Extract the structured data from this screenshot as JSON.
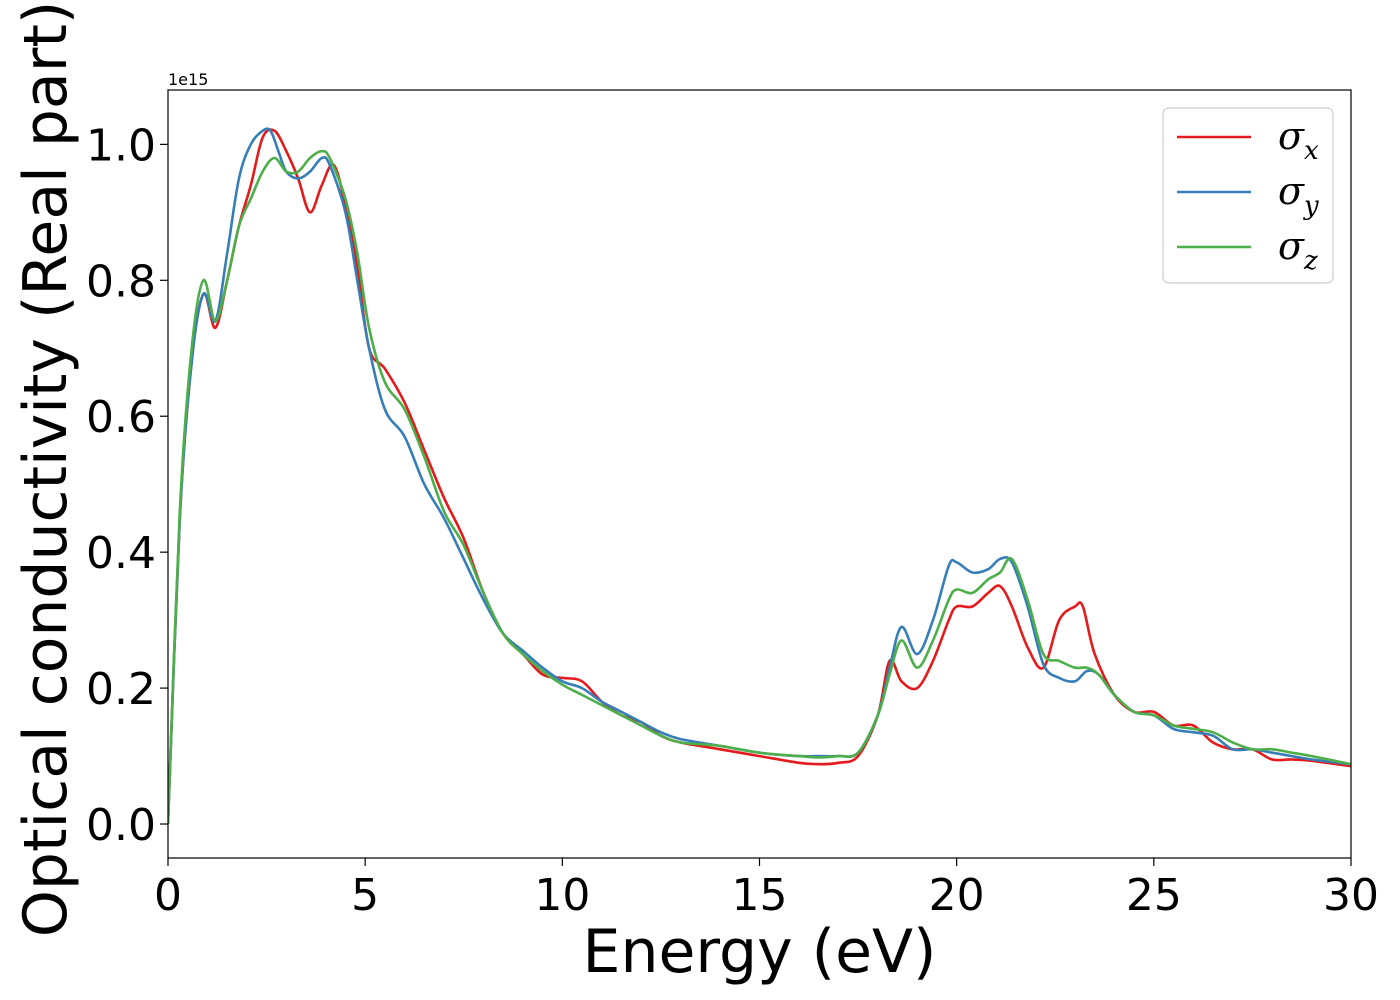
{
  "chart_data": {
    "type": "line",
    "title": "",
    "xlabel": "Energy (eV)",
    "ylabel": "Optical conductivity (Real part)",
    "y_offset_label": "1e15",
    "xlim": [
      0,
      30
    ],
    "ylim": [
      -0.05,
      1.08
    ],
    "xticks": [
      0,
      5,
      10,
      15,
      20,
      25,
      30
    ],
    "xtick_labels": [
      "0",
      "5",
      "10",
      "15",
      "20",
      "25",
      "30"
    ],
    "yticks": [
      0.0,
      0.2,
      0.4,
      0.6,
      0.8,
      1.0
    ],
    "ytick_labels": [
      "0.0",
      "0.2",
      "0.4",
      "0.6",
      "0.8",
      "1.0"
    ],
    "grid": false,
    "legend_position": "top-right",
    "series": [
      {
        "symbol": "σ",
        "subscript": "x",
        "color": "#e41a1c",
        "x": [
          0,
          0.3,
          0.6,
          0.9,
          1.2,
          1.5,
          1.8,
          2.1,
          2.4,
          2.7,
          3.0,
          3.3,
          3.6,
          3.9,
          4.2,
          4.5,
          4.8,
          5.1,
          5.5,
          6.0,
          6.5,
          7.0,
          7.5,
          8.0,
          8.5,
          9.0,
          9.5,
          10.0,
          10.5,
          11.0,
          11.5,
          12.0,
          12.5,
          13.0,
          14.0,
          15.0,
          16.0,
          16.5,
          17.0,
          17.5,
          18.0,
          18.3,
          18.6,
          19.0,
          19.4,
          19.8,
          20.0,
          20.4,
          20.8,
          21.1,
          21.4,
          21.8,
          22.2,
          22.6,
          23.0,
          23.2,
          23.5,
          24.0,
          24.5,
          25.0,
          25.5,
          26.0,
          26.5,
          27.0,
          27.5,
          28.0,
          28.5,
          29.0,
          30.0
        ],
        "y": [
          0.0,
          0.45,
          0.68,
          0.78,
          0.73,
          0.8,
          0.88,
          0.94,
          1.01,
          1.02,
          0.99,
          0.95,
          0.9,
          0.94,
          0.97,
          0.91,
          0.82,
          0.7,
          0.67,
          0.62,
          0.55,
          0.48,
          0.42,
          0.34,
          0.28,
          0.25,
          0.22,
          0.215,
          0.21,
          0.18,
          0.16,
          0.15,
          0.13,
          0.12,
          0.11,
          0.1,
          0.09,
          0.088,
          0.09,
          0.1,
          0.16,
          0.24,
          0.21,
          0.2,
          0.24,
          0.3,
          0.32,
          0.32,
          0.34,
          0.35,
          0.32,
          0.26,
          0.23,
          0.3,
          0.32,
          0.32,
          0.25,
          0.19,
          0.165,
          0.165,
          0.145,
          0.145,
          0.12,
          0.11,
          0.11,
          0.095,
          0.095,
          0.093,
          0.085
        ]
      },
      {
        "symbol": "σ",
        "subscript": "y",
        "color": "#377eb8",
        "x": [
          0,
          0.3,
          0.6,
          0.9,
          1.2,
          1.5,
          1.8,
          2.1,
          2.4,
          2.6,
          2.8,
          3.0,
          3.3,
          3.6,
          3.9,
          4.1,
          4.5,
          4.8,
          5.1,
          5.5,
          6.0,
          6.5,
          7.0,
          7.5,
          8.0,
          8.5,
          9.0,
          9.5,
          10.0,
          10.5,
          11.0,
          11.5,
          12.0,
          12.5,
          13.0,
          14.0,
          15.0,
          16.0,
          16.5,
          17.0,
          17.5,
          18.0,
          18.3,
          18.6,
          19.0,
          19.4,
          19.8,
          20.0,
          20.4,
          20.8,
          21.1,
          21.4,
          21.8,
          22.2,
          22.6,
          23.0,
          23.3,
          23.6,
          24.0,
          24.5,
          25.0,
          25.5,
          26.0,
          26.5,
          27.0,
          27.5,
          28.0,
          28.5,
          29.0,
          30.0
        ],
        "y": [
          0.0,
          0.45,
          0.68,
          0.78,
          0.74,
          0.84,
          0.95,
          1.0,
          1.02,
          1.02,
          0.99,
          0.96,
          0.95,
          0.96,
          0.98,
          0.97,
          0.9,
          0.8,
          0.7,
          0.61,
          0.57,
          0.5,
          0.45,
          0.39,
          0.33,
          0.28,
          0.255,
          0.23,
          0.21,
          0.2,
          0.18,
          0.165,
          0.15,
          0.135,
          0.125,
          0.115,
          0.105,
          0.1,
          0.1,
          0.1,
          0.105,
          0.16,
          0.23,
          0.29,
          0.25,
          0.3,
          0.38,
          0.385,
          0.37,
          0.375,
          0.39,
          0.385,
          0.32,
          0.235,
          0.215,
          0.21,
          0.225,
          0.22,
          0.19,
          0.165,
          0.16,
          0.14,
          0.135,
          0.13,
          0.11,
          0.11,
          0.105,
          0.1,
          0.095,
          0.088
        ]
      },
      {
        "symbol": "σ",
        "subscript": "z",
        "color": "#4daf4a",
        "x": [
          0,
          0.3,
          0.6,
          0.9,
          1.2,
          1.5,
          1.8,
          2.1,
          2.4,
          2.7,
          3.0,
          3.3,
          3.6,
          3.9,
          4.1,
          4.5,
          4.8,
          5.1,
          5.5,
          6.0,
          6.5,
          7.0,
          7.5,
          8.0,
          8.5,
          9.0,
          9.5,
          10.0,
          10.5,
          11.0,
          11.5,
          12.0,
          12.5,
          13.0,
          14.0,
          15.0,
          16.0,
          16.5,
          17.0,
          17.5,
          18.0,
          18.3,
          18.6,
          19.0,
          19.4,
          19.8,
          20.0,
          20.4,
          20.8,
          21.1,
          21.4,
          21.8,
          22.2,
          22.6,
          23.0,
          23.3,
          23.6,
          24.0,
          24.5,
          25.0,
          25.5,
          26.0,
          26.5,
          27.0,
          27.5,
          28.0,
          28.5,
          29.0,
          30.0
        ],
        "y": [
          0.0,
          0.46,
          0.7,
          0.8,
          0.74,
          0.8,
          0.88,
          0.92,
          0.96,
          0.98,
          0.96,
          0.96,
          0.98,
          0.99,
          0.98,
          0.92,
          0.84,
          0.73,
          0.65,
          0.61,
          0.54,
          0.46,
          0.41,
          0.34,
          0.28,
          0.25,
          0.225,
          0.205,
          0.19,
          0.175,
          0.16,
          0.145,
          0.13,
          0.12,
          0.115,
          0.105,
          0.1,
          0.098,
          0.1,
          0.105,
          0.16,
          0.22,
          0.27,
          0.23,
          0.27,
          0.33,
          0.345,
          0.34,
          0.36,
          0.37,
          0.39,
          0.33,
          0.25,
          0.24,
          0.23,
          0.23,
          0.22,
          0.19,
          0.165,
          0.16,
          0.145,
          0.14,
          0.135,
          0.12,
          0.11,
          0.11,
          0.105,
          0.1,
          0.088
        ]
      }
    ]
  }
}
